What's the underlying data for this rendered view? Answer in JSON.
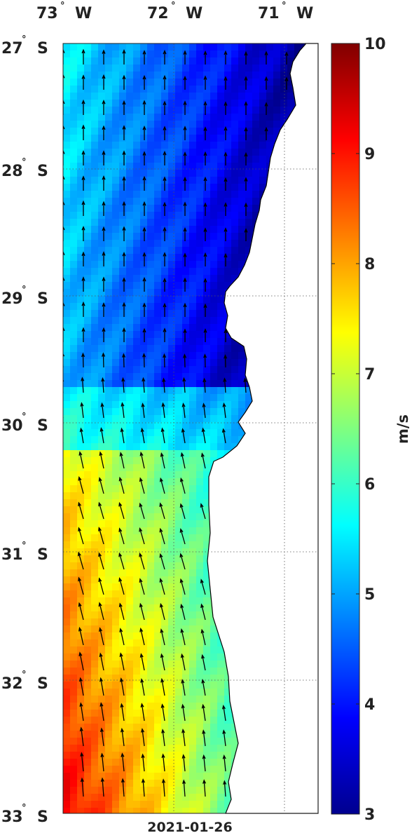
{
  "map": {
    "lon_labels": [
      {
        "deg": "73",
        "hemi": "W"
      },
      {
        "deg": "72",
        "hemi": "W"
      },
      {
        "deg": "71",
        "hemi": "W"
      }
    ],
    "lat_labels": [
      {
        "deg": "27",
        "hemi": "S"
      },
      {
        "deg": "28",
        "hemi": "S"
      },
      {
        "deg": "29",
        "hemi": "S"
      },
      {
        "deg": "30",
        "hemi": "S"
      },
      {
        "deg": "31",
        "hemi": "S"
      },
      {
        "deg": "32",
        "hemi": "S"
      },
      {
        "deg": "33",
        "hemi": "S"
      }
    ],
    "degree_symbol": "°",
    "date": "2021-01-26",
    "extent": {
      "lon": [
        -73.0,
        -70.8
      ],
      "lat": [
        -33.0,
        -27.0
      ]
    }
  },
  "colorbar": {
    "unit": "m/s",
    "range": [
      3,
      10
    ],
    "ticks": [
      "10",
      "9",
      "8",
      "7",
      "6",
      "5",
      "4",
      "3"
    ],
    "colormap": "jet",
    "stops": [
      "#00008f",
      "#0000ff",
      "#00ffff",
      "#ffff00",
      "#ff0000",
      "#800000"
    ]
  },
  "colors": {
    "land": "#ffffff",
    "coastline": "#000000",
    "arrows": "#000000",
    "grid": "#555555"
  }
}
